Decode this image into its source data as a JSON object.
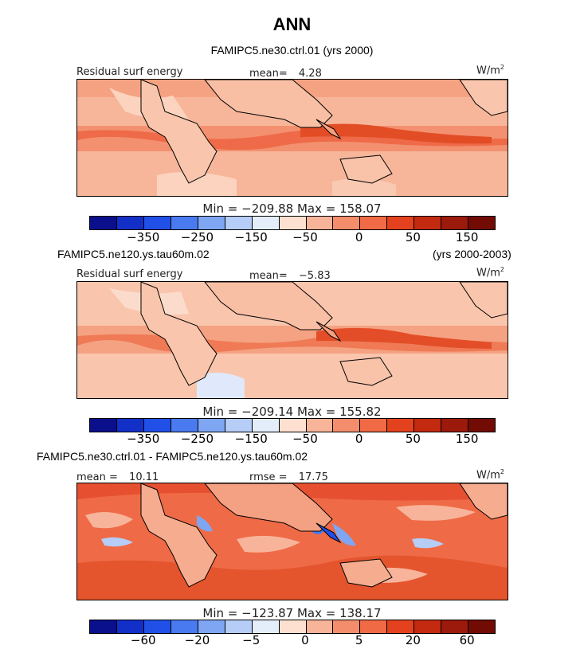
{
  "title": "ANN",
  "chart_data": [
    {
      "type": "heatmap",
      "panel": 1,
      "case_label": "FAMIPC5.ne30.ctrl.01 (yrs 2000)",
      "field_label": "Residual surf energy",
      "stat_label": "mean=",
      "stat_value": "4.28",
      "units_base": "W/m",
      "units_exp": "2",
      "min_max": "Min = −209.88 Max = 158.07",
      "colorbar_colors": [
        "#0a0f8c",
        "#1230c8",
        "#2050e8",
        "#4a7af0",
        "#7fa6f3",
        "#b5cdf7",
        "#e4eefb",
        "#fde0cf",
        "#f8b499",
        "#f48d6c",
        "#f06a46",
        "#e4421e",
        "#c42a10",
        "#9c1a0b",
        "#730b05"
      ],
      "colorbar_ticks": [
        "−350",
        "−250",
        "−150",
        "−50",
        "0",
        "50",
        "150"
      ]
    },
    {
      "type": "heatmap",
      "panel": 2,
      "case_label": "FAMIPC5.ne120.ys.tau60m.02",
      "years_label": "(yrs 2000-2003)",
      "field_label": "Residual surf energy",
      "stat_label": "mean=",
      "stat_value": "−5.83",
      "units_base": "W/m",
      "units_exp": "2",
      "min_max": "Min = −209.14 Max = 155.82",
      "colorbar_colors": [
        "#0a0f8c",
        "#1230c8",
        "#2050e8",
        "#4a7af0",
        "#7fa6f3",
        "#b5cdf7",
        "#e4eefb",
        "#fde0cf",
        "#f8b499",
        "#f48d6c",
        "#f06a46",
        "#e4421e",
        "#c42a10",
        "#9c1a0b",
        "#730b05"
      ],
      "colorbar_ticks": [
        "−350",
        "−250",
        "−150",
        "−50",
        "0",
        "50",
        "150"
      ]
    },
    {
      "type": "heatmap",
      "panel": 3,
      "case_label": "FAMIPC5.ne30.ctrl.01 - FAMIPC5.ne120.ys.tau60m.02",
      "stat_label": "mean =",
      "stat_value": "10.11",
      "rmse_label": "rmse =",
      "rmse_value": "17.75",
      "units_base": "W/m",
      "units_exp": "2",
      "min_max": "Min = −123.87 Max = 138.17",
      "colorbar_colors": [
        "#0a0f8c",
        "#1230c8",
        "#2050e8",
        "#4a7af0",
        "#7fa6f3",
        "#b5cdf7",
        "#e4eefb",
        "#fde0cf",
        "#f8b499",
        "#f48d6c",
        "#f06a46",
        "#e4421e",
        "#c42a10",
        "#9c1a0b",
        "#730b05"
      ],
      "colorbar_ticks": [
        "−60",
        "−20",
        "−5",
        "0",
        "5",
        "20",
        "60"
      ]
    }
  ]
}
